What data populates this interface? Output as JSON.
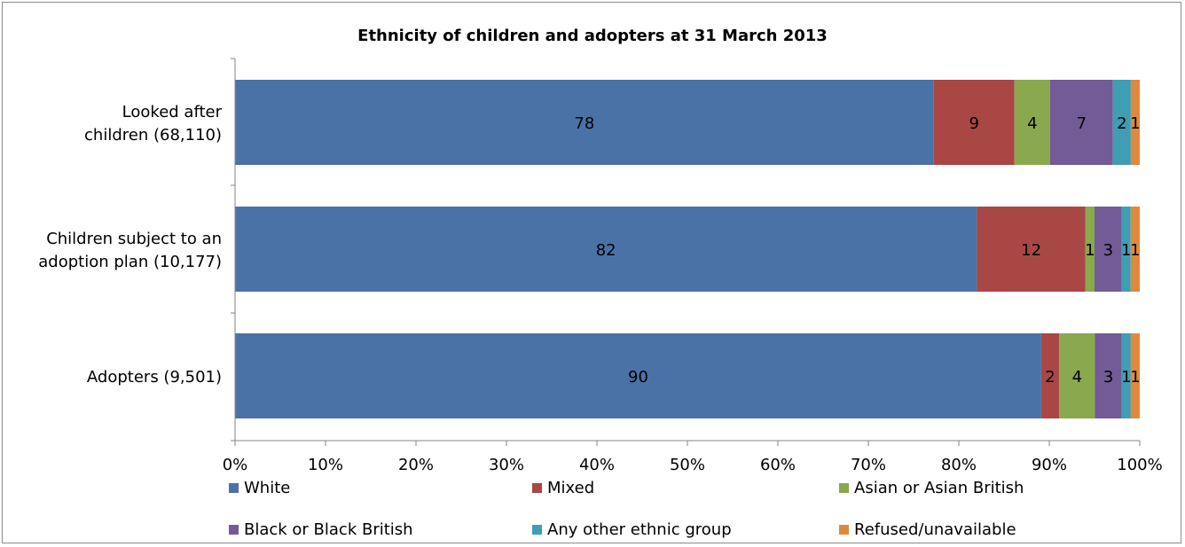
{
  "chart_data": {
    "type": "bar",
    "orientation": "horizontal",
    "stacked": true,
    "percent_stacked": true,
    "title": "Ethnicity of children and adopters at 31 March 2013",
    "categories": [
      "Looked after children (68,110)",
      "Children subject to an adoption plan (10,177)",
      "Adopters (9,501)"
    ],
    "category_lines": [
      [
        "Looked after",
        "children (68,110)"
      ],
      [
        "Children subject to an",
        "adoption plan (10,177)"
      ],
      [
        "Adopters (9,501)"
      ]
    ],
    "series": [
      {
        "name": "White",
        "values": [
          78,
          82,
          90
        ],
        "color": "#4a72a7"
      },
      {
        "name": "Mixed",
        "values": [
          9,
          12,
          2
        ],
        "color": "#a94744"
      },
      {
        "name": "Asian or Asian British",
        "values": [
          4,
          1,
          4
        ],
        "color": "#8aa84e"
      },
      {
        "name": "Black or Black British",
        "values": [
          7,
          3,
          3
        ],
        "color": "#725b96"
      },
      {
        "name": "Any other ethnic group",
        "values": [
          2,
          1,
          1
        ],
        "color": "#3f9db4"
      },
      {
        "name": "Refused/unavailable",
        "values": [
          1,
          1,
          1
        ],
        "color": "#e0893c"
      }
    ],
    "xlim": [
      0,
      100
    ],
    "x_ticks": [
      "0%",
      "10%",
      "20%",
      "30%",
      "40%",
      "50%",
      "60%",
      "70%",
      "80%",
      "90%",
      "100%"
    ],
    "grid": false,
    "legend": "bottom"
  }
}
